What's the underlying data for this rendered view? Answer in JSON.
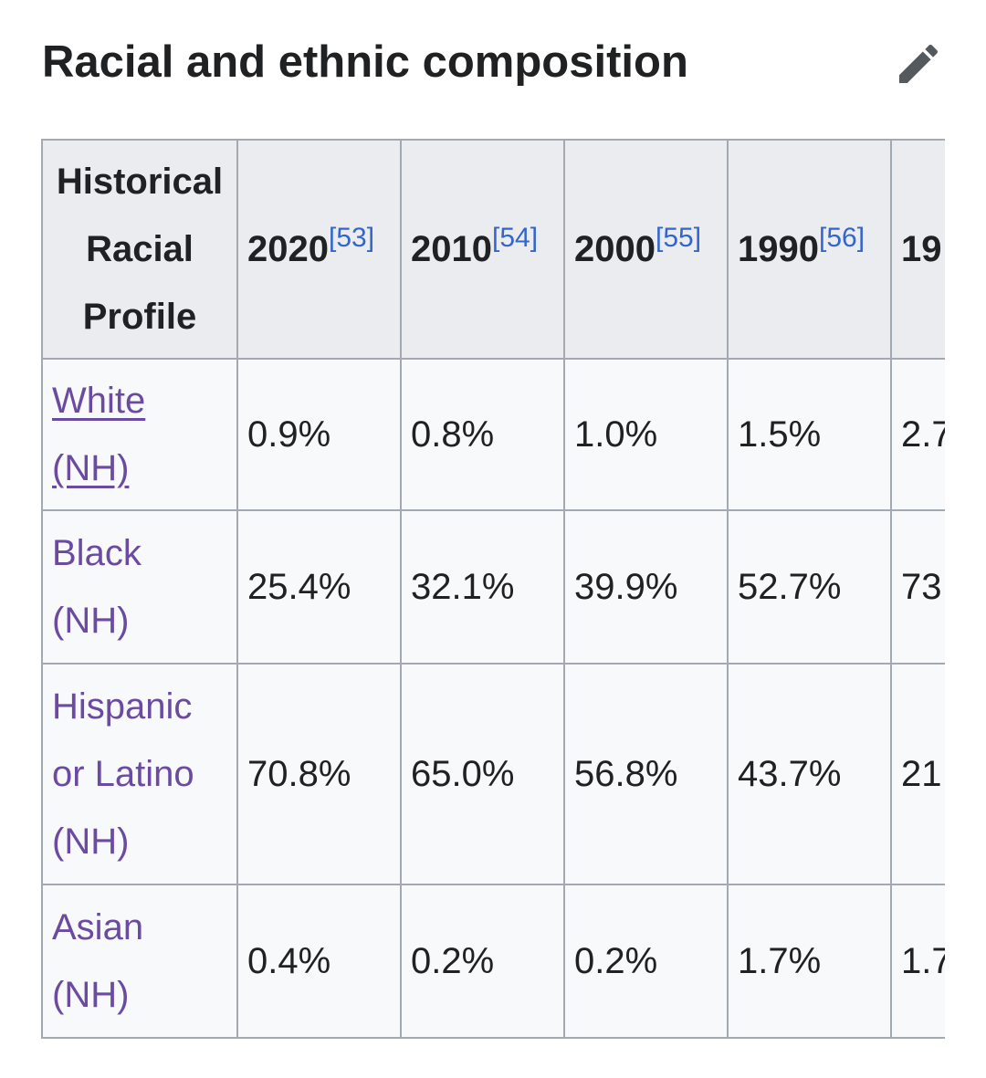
{
  "section": {
    "title": "Racial and ethnic composition",
    "edit_icon": "pencil-icon"
  },
  "table": {
    "header": {
      "label": "Historical Racial Profile",
      "years": [
        {
          "year": "2020",
          "ref": "[53]"
        },
        {
          "year": "2010",
          "ref": "[54]"
        },
        {
          "year": "2000",
          "ref": "[55]"
        },
        {
          "year": "1990",
          "ref": "[56]"
        },
        {
          "year": "19",
          "ref": ""
        }
      ]
    },
    "rows": [
      {
        "label": "White (NH)",
        "values": [
          "0.9%",
          "0.8%",
          "1.0%",
          "1.5%",
          "2.7"
        ]
      },
      {
        "label": "Black (NH)",
        "values": [
          "25.4%",
          "32.1%",
          "39.9%",
          "52.7%",
          "73"
        ]
      },
      {
        "label": "Hispanic or Latino (NH)",
        "values": [
          "70.8%",
          "65.0%",
          "56.8%",
          "43.7%",
          "21"
        ]
      },
      {
        "label": "Asian (NH)",
        "values": [
          "0.4%",
          "0.2%",
          "0.2%",
          "1.7%",
          "1.7"
        ]
      }
    ]
  },
  "colors": {
    "link": "#6b4ba1",
    "reference": "#3366cc",
    "header_bg": "#eaecf0",
    "cell_bg": "#f8f9fa",
    "border": "#a2a9b1",
    "text": "#202122",
    "icon": "#54595d"
  }
}
